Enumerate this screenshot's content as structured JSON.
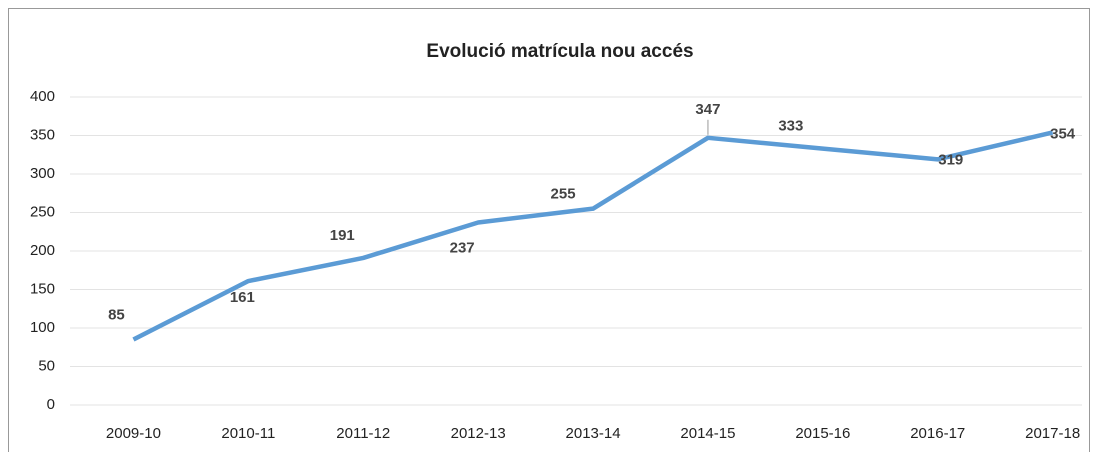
{
  "chart_data": {
    "type": "line",
    "title": "Evolució matrícula nou accés",
    "categories": [
      "2009-10",
      "2010-11",
      "2011-12",
      "2012-13",
      "2013-14",
      "2014-15",
      "2015-16",
      "2016-17",
      "2017-18"
    ],
    "values": [
      85,
      161,
      191,
      237,
      255,
      347,
      333,
      319,
      354
    ],
    "color": "#5b9bd5",
    "ylim": [
      0,
      400
    ],
    "yticks": [
      0,
      50,
      100,
      150,
      200,
      250,
      300,
      350,
      400
    ],
    "grid": true
  }
}
